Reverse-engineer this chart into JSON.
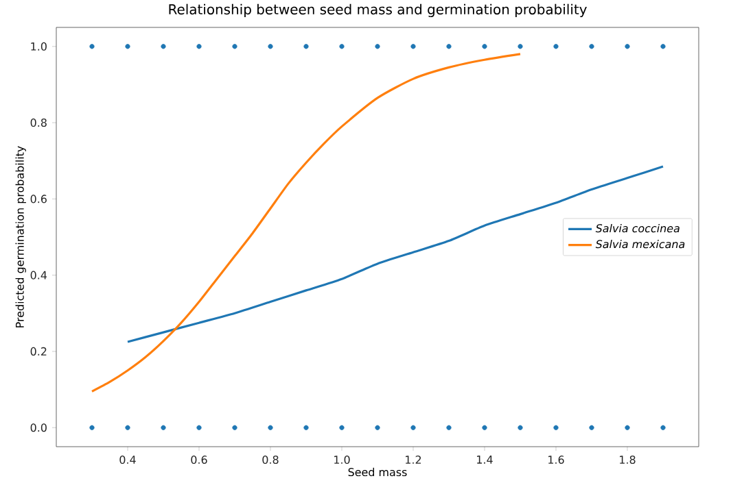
{
  "chart_data": {
    "type": "line",
    "title": "Relationship between seed mass and germination probability",
    "xlabel": "Seed mass",
    "ylabel": "Predicted germination probability",
    "xlim": [
      0.2,
      2.0
    ],
    "ylim": [
      -0.05,
      1.05
    ],
    "xticks": [
      {
        "value": 0.4,
        "label": "0.4"
      },
      {
        "value": 0.6,
        "label": "0.6"
      },
      {
        "value": 0.8,
        "label": "0.8"
      },
      {
        "value": 1.0,
        "label": "1.0"
      },
      {
        "value": 1.2,
        "label": "1.2"
      },
      {
        "value": 1.4,
        "label": "1.4"
      },
      {
        "value": 1.6,
        "label": "1.6"
      },
      {
        "value": 1.8,
        "label": "1.8"
      }
    ],
    "yticks": [
      {
        "value": 0,
        "label": "0.0"
      },
      {
        "value": 0.2,
        "label": "0.2"
      },
      {
        "value": 0.4,
        "label": "0.4"
      },
      {
        "value": 0.6,
        "label": "0.6"
      },
      {
        "value": 0.8,
        "label": "0.8"
      },
      {
        "value": 1.0,
        "label": "1.0"
      }
    ],
    "legend": "right",
    "grid": false,
    "series": [
      {
        "type": "scatter",
        "marker": "circle",
        "color": "#1f77b4",
        "x": [
          0.3,
          0.4,
          0.5,
          0.6,
          0.7,
          0.8,
          0.9,
          1.0,
          1.1,
          1.2,
          1.3,
          1.4,
          1.5,
          1.6,
          1.7,
          1.8,
          1.9,
          0.3,
          0.4,
          0.5,
          0.6,
          0.7,
          0.8,
          0.9,
          1.0,
          1.1,
          1.2,
          1.3,
          1.4,
          1.5,
          1.6,
          1.7,
          1.8,
          1.9
        ],
        "values": [
          1,
          1,
          1,
          1,
          1,
          1,
          1,
          1,
          1,
          1,
          1,
          1,
          1,
          1,
          1,
          1,
          1,
          0,
          0,
          0,
          0,
          0,
          0,
          0,
          0,
          0,
          0,
          0,
          0,
          0,
          0,
          0,
          0,
          0
        ]
      },
      {
        "name": "Salvia coccinea",
        "color": "#1f77b4",
        "line_style": "solid",
        "x": [
          0.4,
          0.5,
          0.6,
          0.7,
          0.8,
          0.9,
          1.0,
          1.1,
          1.2,
          1.3,
          1.4,
          1.5,
          1.6,
          1.7,
          1.8,
          1.9
        ],
        "values": [
          0.225,
          0.25,
          0.275,
          0.3,
          0.33,
          0.36,
          0.39,
          0.43,
          0.46,
          0.49,
          0.53,
          0.56,
          0.59,
          0.625,
          0.655,
          0.685
        ]
      },
      {
        "name": "Salvia mexicana",
        "color": "#ff7f0e",
        "line_style": "solid",
        "x": [
          0.3,
          0.35,
          0.4,
          0.45,
          0.5,
          0.55,
          0.6,
          0.65,
          0.7,
          0.75,
          0.8,
          0.85,
          0.9,
          0.95,
          1.0,
          1.1,
          1.2,
          1.3,
          1.4,
          1.5
        ],
        "values": [
          0.095,
          0.12,
          0.15,
          0.185,
          0.227,
          0.275,
          0.33,
          0.39,
          0.45,
          0.51,
          0.575,
          0.64,
          0.695,
          0.745,
          0.79,
          0.865,
          0.915,
          0.945,
          0.965,
          0.98
        ]
      }
    ]
  }
}
